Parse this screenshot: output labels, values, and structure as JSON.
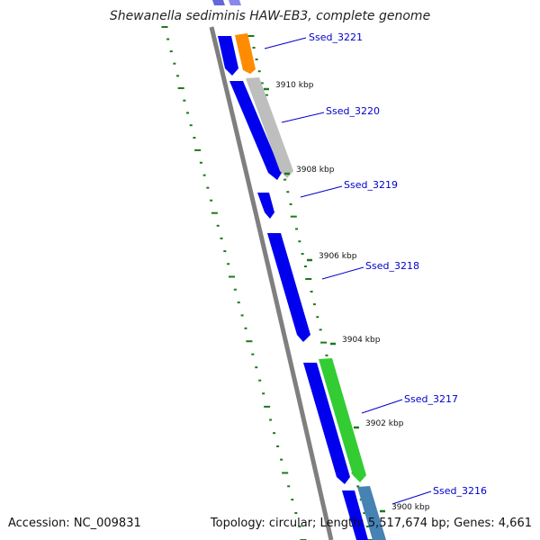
{
  "title": "Shewanella sediminis HAW-EB3, complete genome",
  "footer": {
    "accession": "Accession: NC_009831",
    "summary": "Topology: circular; Length: 5,517,674 bp; Genes: 4,661"
  },
  "colors": {
    "forward_cds": "#0000ee",
    "highlight_orange": "#ff8c00",
    "highlight_gray": "#bebebe",
    "highlight_green": "#33cc33",
    "highlight_steel": "#4682b4",
    "backbone": "#7f7f7f",
    "tick": "#1a7a1a",
    "label_line": "#0000cc"
  },
  "kbp_labels": [
    "3910 kbp",
    "3908 kbp",
    "3906 kbp",
    "3904 kbp",
    "3902 kbp",
    "3900 kbp"
  ],
  "gene_labels": [
    "Ssed_3221",
    "Ssed_3220",
    "Ssed_3219",
    "Ssed_3218",
    "Ssed_3217",
    "Ssed_3216"
  ]
}
